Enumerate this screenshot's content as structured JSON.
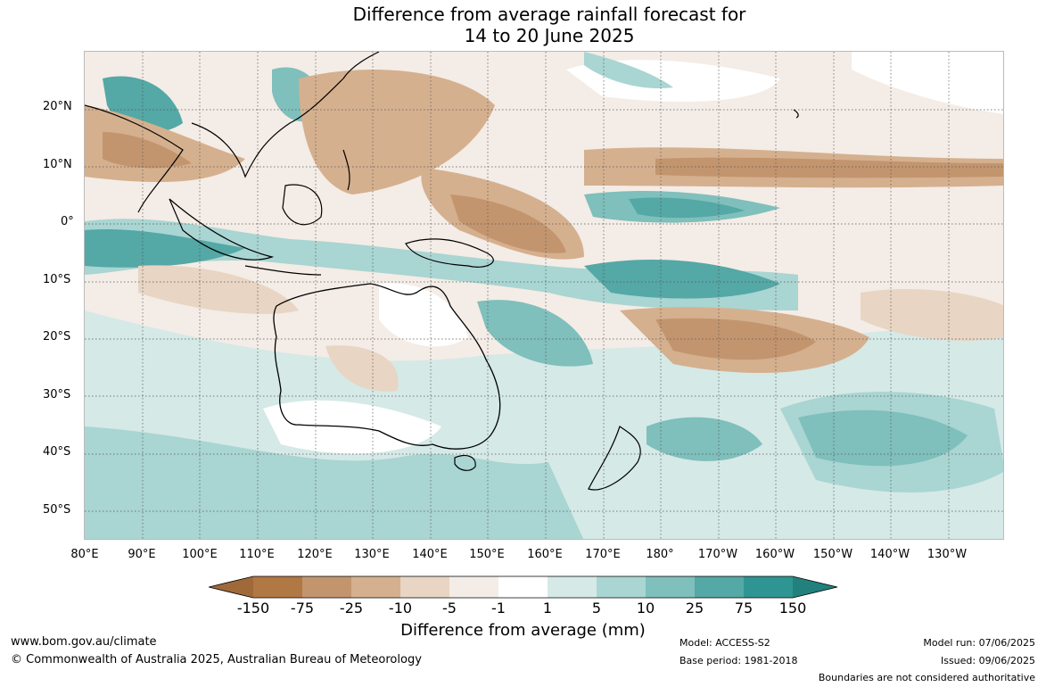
{
  "title_line1": "Difference from average rainfall forecast for",
  "title_line2": "14 to 20 June 2025",
  "lat_labels": [
    "20°N",
    "10°N",
    "0°",
    "10°S",
    "20°S",
    "30°S",
    "40°S",
    "50°S"
  ],
  "lon_labels": [
    "80°E",
    "90°E",
    "100°E",
    "110°E",
    "120°E",
    "130°E",
    "140°E",
    "150°E",
    "160°E",
    "170°E",
    "180°",
    "170°W",
    "160°W",
    "150°W",
    "140°W",
    "130°W"
  ],
  "colorbar": {
    "ticks": [
      "-150",
      "-75",
      "-25",
      "-10",
      "-5",
      "-1",
      "1",
      "5",
      "10",
      "25",
      "75",
      "150"
    ],
    "colors": [
      "#a0693a",
      "#b07843",
      "#c3956e",
      "#d5b08f",
      "#e8d5c3",
      "#f4ece6",
      "#ffffff",
      "#d5e9e7",
      "#a9d5d2",
      "#7fbfbc",
      "#54a8a5",
      "#2f9592",
      "#22807d"
    ],
    "label": "Difference from average (mm)"
  },
  "footer": {
    "website": "www.bom.gov.au/climate",
    "copyright": "© Commonwealth of Australia 2025, Australian Bureau of Meteorology",
    "model": "Model: ACCESS-S2",
    "base_period": "Base period: 1981-2018",
    "model_run": "Model run: 07/06/2025",
    "issued": "Issued: 09/06/2025",
    "disclaimer": "Boundaries are not considered authoritative"
  }
}
